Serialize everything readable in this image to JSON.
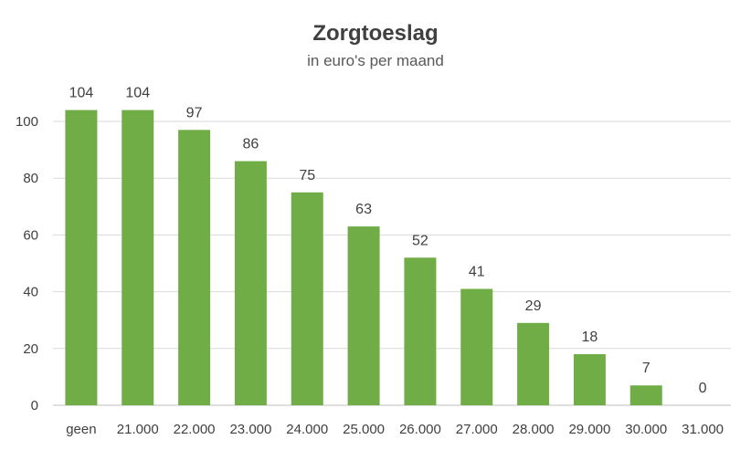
{
  "chart_data": {
    "type": "bar",
    "title": "Zorgtoeslag",
    "subtitle": "in euro's per maand",
    "categories": [
      "geen",
      "21.000",
      "22.000",
      "23.000",
      "24.000",
      "25.000",
      "26.000",
      "27.000",
      "28.000",
      "29.000",
      "30.000",
      "31.000"
    ],
    "values": [
      104,
      104,
      97,
      86,
      75,
      63,
      52,
      41,
      29,
      18,
      7,
      0
    ],
    "ylim": [
      0,
      100
    ],
    "yticks": [
      0,
      20,
      40,
      60,
      80,
      100
    ],
    "grid": true,
    "legend": "none",
    "bar_color": "#70ad47"
  }
}
